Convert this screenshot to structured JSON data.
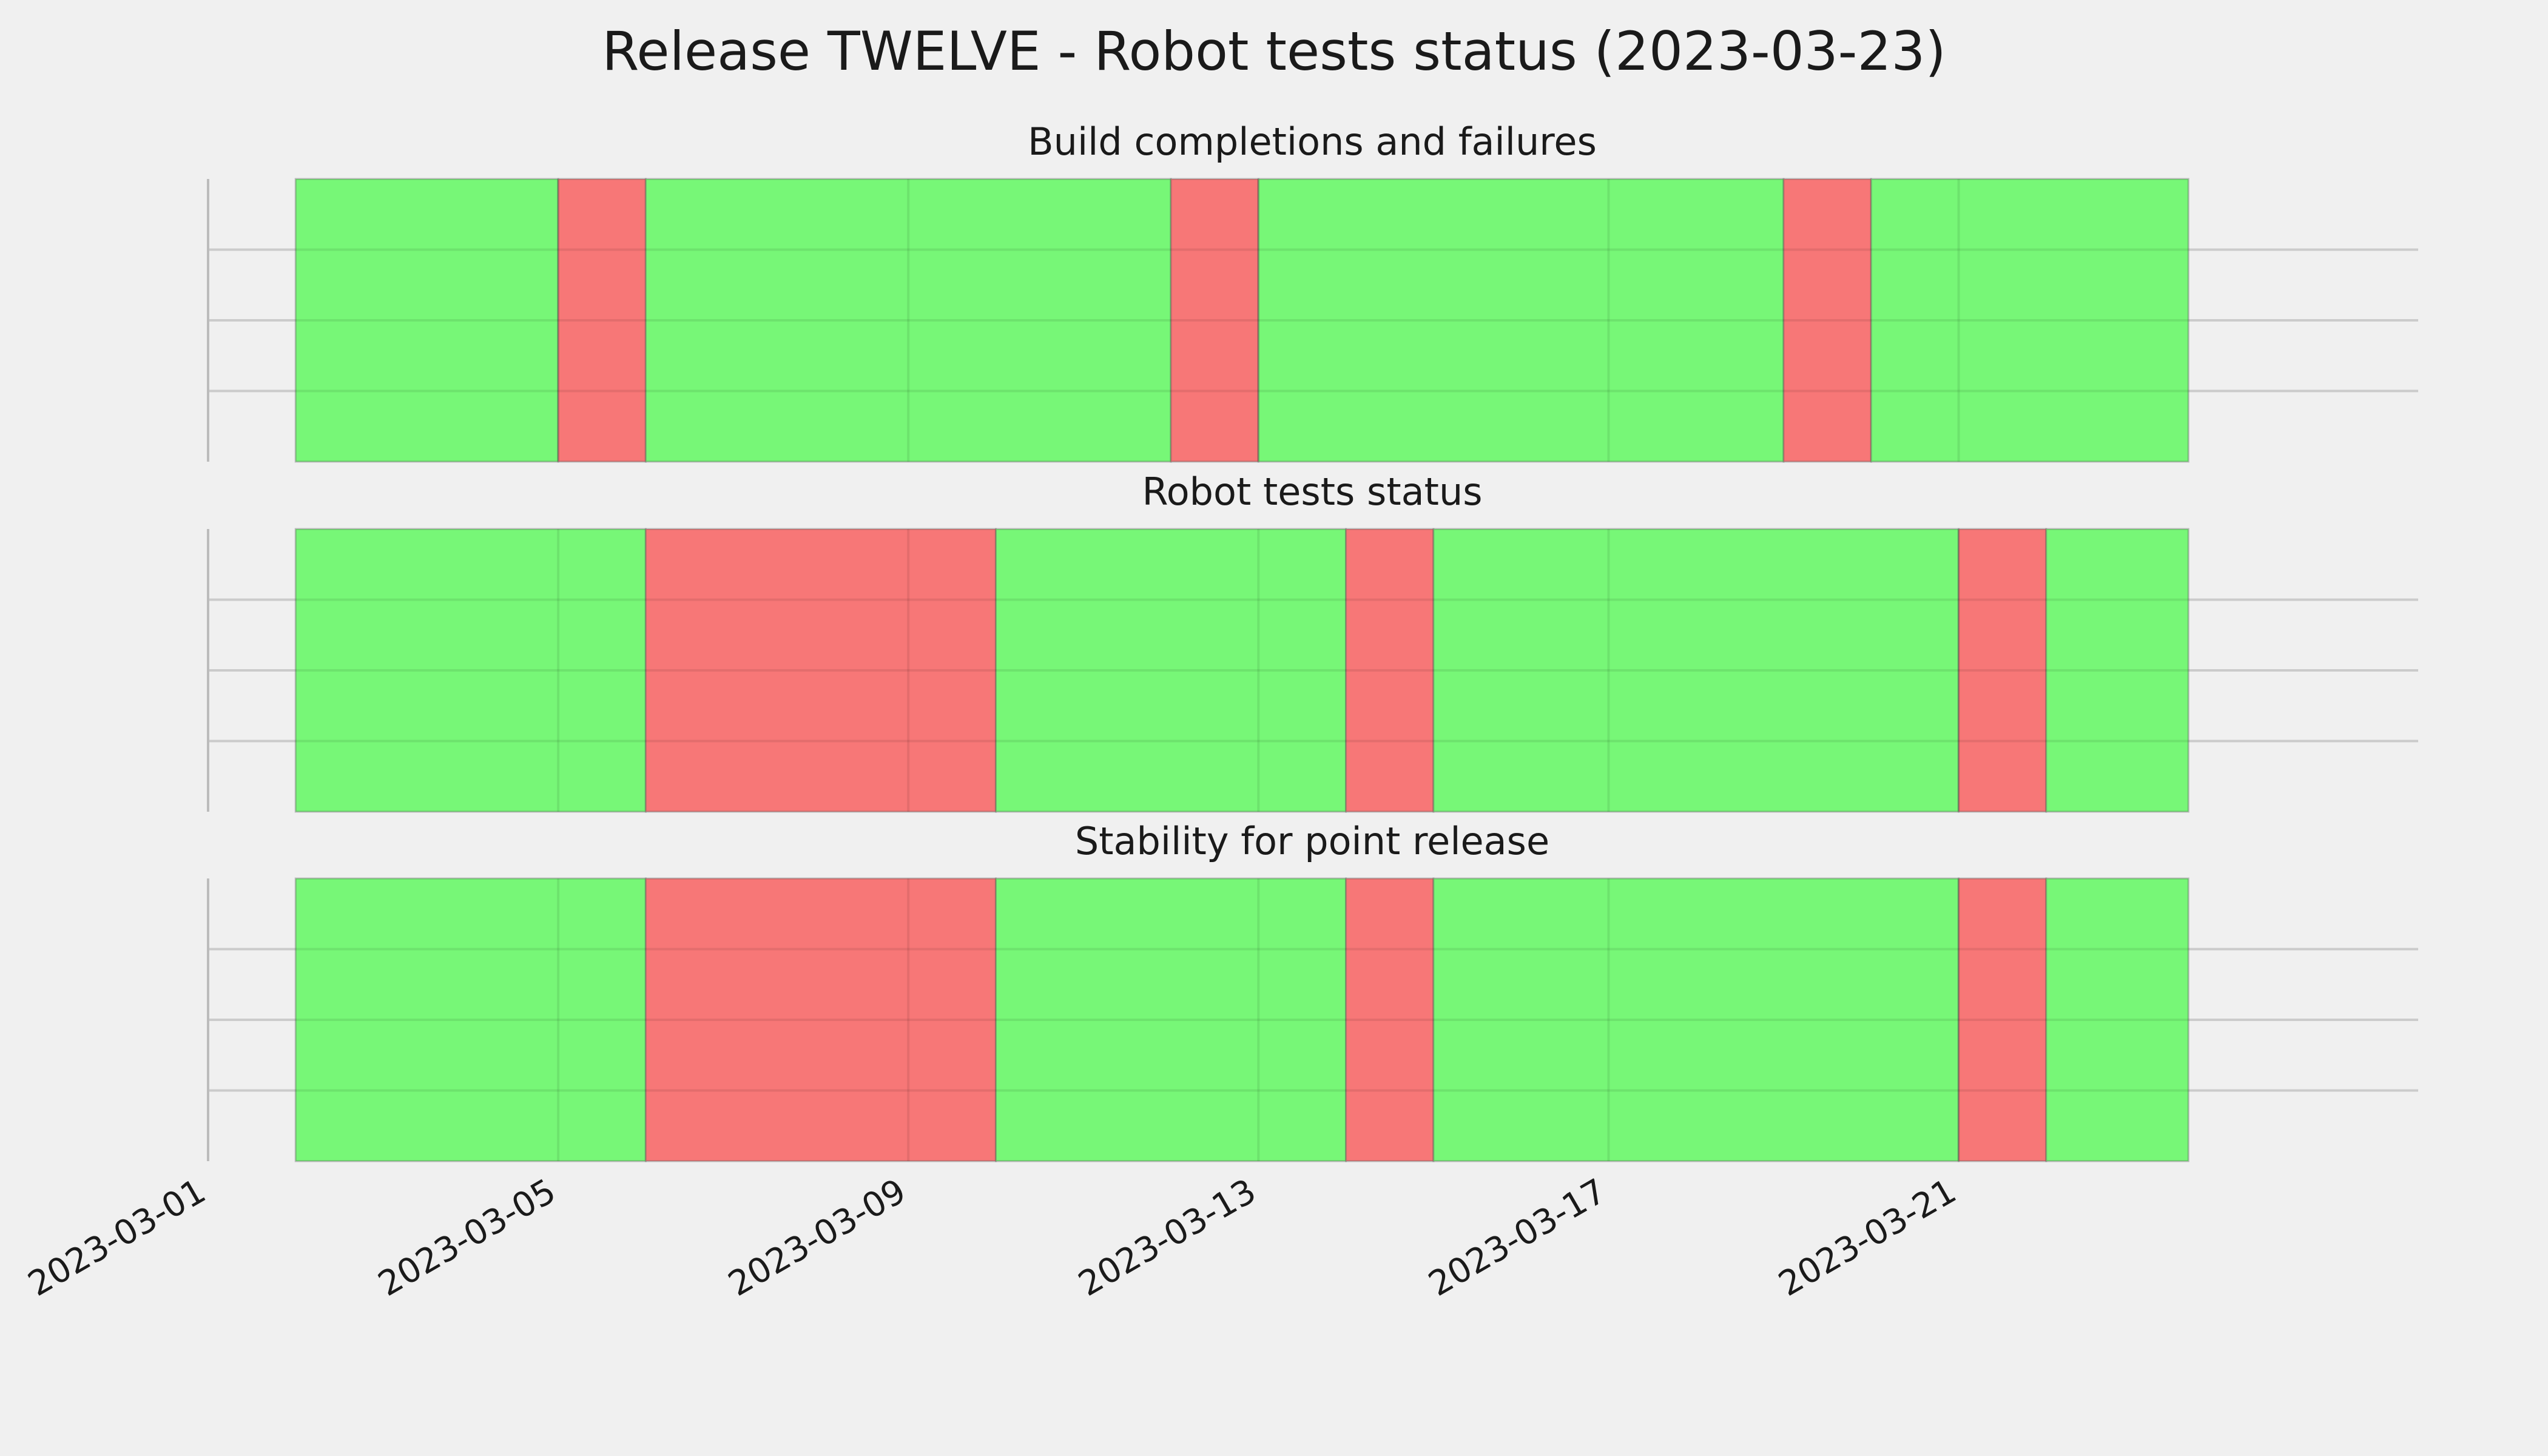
{
  "figure": {
    "title": "Release TWELVE - Robot tests status (2023-03-23)",
    "background": "#f0f0f0"
  },
  "chart_data": {
    "type": "bar",
    "orientation": "horizontal-timeline",
    "x_axis": {
      "type": "date",
      "range": [
        "2023-03-01",
        "2023-03-26T06:00"
      ],
      "ticks": [
        "2023-03-01",
        "2023-03-05",
        "2023-03-09",
        "2023-03-13",
        "2023-03-17",
        "2023-03-21"
      ],
      "tick_rotation": 30
    },
    "grid": true,
    "colors": {
      "pass": "#77f777",
      "fail": "#f77777",
      "edge": "#555555"
    },
    "panels": [
      {
        "title": "Build completions and failures",
        "segments": [
          {
            "start": "2023-03-02",
            "end": "2023-03-05",
            "status": "pass"
          },
          {
            "start": "2023-03-05",
            "end": "2023-03-06",
            "status": "fail"
          },
          {
            "start": "2023-03-06",
            "end": "2023-03-12",
            "status": "pass"
          },
          {
            "start": "2023-03-12",
            "end": "2023-03-13",
            "status": "fail"
          },
          {
            "start": "2023-03-13",
            "end": "2023-03-19",
            "status": "pass"
          },
          {
            "start": "2023-03-19",
            "end": "2023-03-20",
            "status": "fail"
          },
          {
            "start": "2023-03-20",
            "end": "2023-03-23T15:00",
            "status": "pass"
          }
        ]
      },
      {
        "title": "Robot tests status",
        "segments": [
          {
            "start": "2023-03-02",
            "end": "2023-03-06",
            "status": "pass"
          },
          {
            "start": "2023-03-06",
            "end": "2023-03-10",
            "status": "fail"
          },
          {
            "start": "2023-03-10",
            "end": "2023-03-14",
            "status": "pass"
          },
          {
            "start": "2023-03-14",
            "end": "2023-03-15",
            "status": "fail"
          },
          {
            "start": "2023-03-15",
            "end": "2023-03-21",
            "status": "pass"
          },
          {
            "start": "2023-03-21",
            "end": "2023-03-22",
            "status": "fail"
          },
          {
            "start": "2023-03-22",
            "end": "2023-03-23T15:00",
            "status": "pass"
          }
        ]
      },
      {
        "title": "Stability for point release",
        "segments": [
          {
            "start": "2023-03-02",
            "end": "2023-03-06",
            "status": "pass"
          },
          {
            "start": "2023-03-06",
            "end": "2023-03-10",
            "status": "fail"
          },
          {
            "start": "2023-03-10",
            "end": "2023-03-14",
            "status": "pass"
          },
          {
            "start": "2023-03-14",
            "end": "2023-03-15",
            "status": "fail"
          },
          {
            "start": "2023-03-15",
            "end": "2023-03-21",
            "status": "pass"
          },
          {
            "start": "2023-03-21",
            "end": "2023-03-22",
            "status": "fail"
          },
          {
            "start": "2023-03-22",
            "end": "2023-03-23T15:00",
            "status": "pass"
          }
        ]
      }
    ]
  }
}
